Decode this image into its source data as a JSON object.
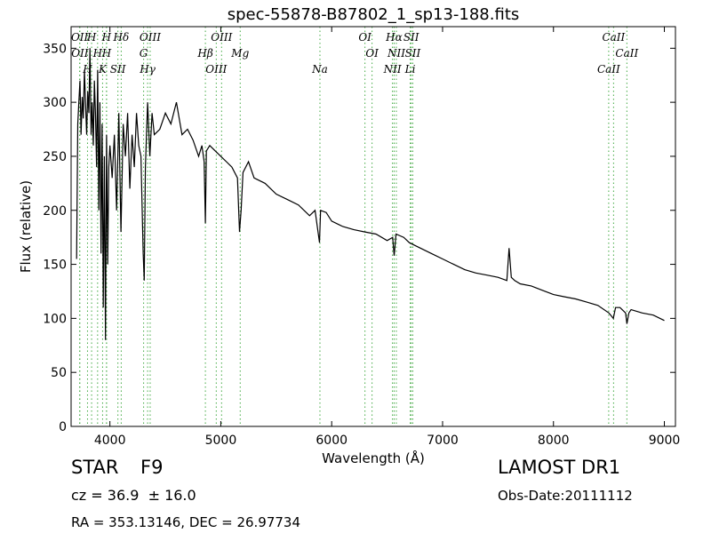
{
  "chart_data": {
    "type": "line",
    "title": "spec-55878-B87802_1_sp13-188.fits",
    "xlabel": "Wavelength (Å)",
    "ylabel": "Flux (relative)",
    "xlim": [
      3650,
      9100
    ],
    "ylim": [
      0,
      370
    ],
    "xticks": [
      4000,
      5000,
      6000,
      7000,
      8000,
      9000
    ],
    "yticks": [
      0,
      50,
      100,
      150,
      200,
      250,
      300,
      350
    ],
    "grid": false,
    "legend": "none",
    "colors": {
      "spectrum": "#000000",
      "lines": "#44aa44"
    },
    "series": [
      {
        "x": [
          3700,
          3710,
          3720,
          3730,
          3740,
          3750,
          3760,
          3770,
          3780,
          3790,
          3800,
          3810,
          3820,
          3830,
          3840,
          3850,
          3860,
          3870,
          3880,
          3890,
          3900,
          3910,
          3920,
          3930,
          3940,
          3950,
          3960,
          3970,
          3980,
          3990,
          4000,
          4020,
          4040,
          4060,
          4080,
          4100,
          4120,
          4140,
          4160,
          4180,
          4200,
          4220,
          4240,
          4260,
          4280,
          4300,
          4310,
          4320,
          4340,
          4360,
          4380,
          4400,
          4450,
          4500,
          4550,
          4600,
          4650,
          4700,
          4750,
          4800,
          4830,
          4850,
          4861,
          4870,
          4900,
          4950,
          5000,
          5050,
          5100,
          5150,
          5169,
          5183,
          5200,
          5250,
          5300,
          5400,
          5500,
          5600,
          5700,
          5800,
          5850,
          5890,
          5900,
          5950,
          6000,
          6100,
          6200,
          6300,
          6400,
          6500,
          6550,
          6563,
          6580,
          6650,
          6700,
          6800,
          6900,
          7000,
          7100,
          7200,
          7300,
          7400,
          7500,
          7580,
          7600,
          7620,
          7650,
          7700,
          7800,
          7900,
          8000,
          8100,
          8200,
          8300,
          8400,
          8500,
          8540,
          8560,
          8600,
          8650,
          8662,
          8680,
          8700,
          8800,
          8900,
          9000
        ],
        "values": [
          155,
          280,
          300,
          320,
          270,
          305,
          285,
          330,
          300,
          270,
          310,
          290,
          350,
          270,
          300,
          260,
          320,
          290,
          240,
          330,
          200,
          300,
          160,
          280,
          110,
          250,
          80,
          270,
          150,
          240,
          260,
          230,
          270,
          200,
          290,
          180,
          280,
          250,
          290,
          220,
          270,
          240,
          290,
          260,
          250,
          160,
          135,
          240,
          300,
          250,
          290,
          270,
          275,
          290,
          280,
          300,
          270,
          275,
          265,
          250,
          260,
          245,
          188,
          255,
          260,
          255,
          250,
          245,
          240,
          230,
          180,
          200,
          235,
          245,
          230,
          225,
          215,
          210,
          205,
          195,
          200,
          170,
          200,
          198,
          190,
          185,
          182,
          180,
          178,
          172,
          175,
          158,
          178,
          175,
          170,
          165,
          160,
          155,
          150,
          145,
          142,
          140,
          138,
          135,
          165,
          138,
          135,
          132,
          130,
          126,
          122,
          120,
          118,
          115,
          112,
          105,
          100,
          110,
          110,
          105,
          95,
          105,
          108,
          105,
          103,
          98
        ]
      }
    ],
    "line_markers": [
      {
        "wl": 3727,
        "label": "OII"
      },
      {
        "wl": 3729,
        "label": "OII"
      },
      {
        "wl": 3798,
        "label": "H"
      },
      {
        "wl": 3835,
        "label": "H"
      },
      {
        "wl": 3889,
        "label": "H"
      },
      {
        "wl": 3934,
        "label": "K"
      },
      {
        "wl": 3969,
        "label": "H"
      },
      {
        "wl": 3970,
        "label": "H"
      },
      {
        "wl": 4072,
        "label": "SII"
      },
      {
        "wl": 4102,
        "label": "Hδ"
      },
      {
        "wl": 4304,
        "label": "G"
      },
      {
        "wl": 4340,
        "label": "Hγ"
      },
      {
        "wl": 4363,
        "label": "OIII"
      },
      {
        "wl": 4861,
        "label": "Hβ"
      },
      {
        "wl": 4959,
        "label": "OIII"
      },
      {
        "wl": 5007,
        "label": "OIII"
      },
      {
        "wl": 5175,
        "label": "Mg"
      },
      {
        "wl": 5894,
        "label": "Na"
      },
      {
        "wl": 6300,
        "label": "OI"
      },
      {
        "wl": 6364,
        "label": "OI"
      },
      {
        "wl": 6548,
        "label": "NII"
      },
      {
        "wl": 6563,
        "label": "Hα"
      },
      {
        "wl": 6583,
        "label": "NII"
      },
      {
        "wl": 6708,
        "label": "Li"
      },
      {
        "wl": 6717,
        "label": "SII"
      },
      {
        "wl": 6731,
        "label": "SII"
      },
      {
        "wl": 8498,
        "label": "CaII"
      },
      {
        "wl": 8542,
        "label": "CaII"
      },
      {
        "wl": 8662,
        "label": "CaII"
      }
    ]
  },
  "info": {
    "class_label": "STAR",
    "subclass_label": "F9",
    "redshift": "cz = 36.9  ± 16.0",
    "coords": "RA = 353.13146, DEC = 26.97734",
    "survey": "LAMOST DR1",
    "obs_date": "Obs-Date:20111112"
  }
}
